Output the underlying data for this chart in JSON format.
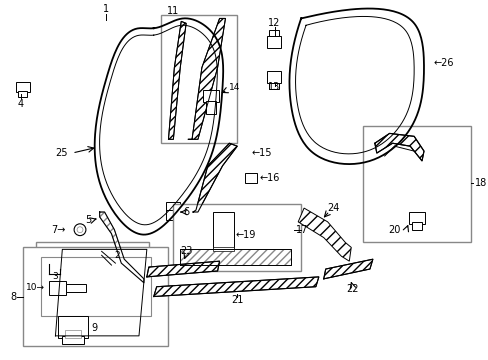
{
  "bg_color": "#ffffff",
  "line_color": "#000000",
  "box_color": "#888888",
  "figsize": [
    4.89,
    3.6
  ],
  "dpi": 100
}
